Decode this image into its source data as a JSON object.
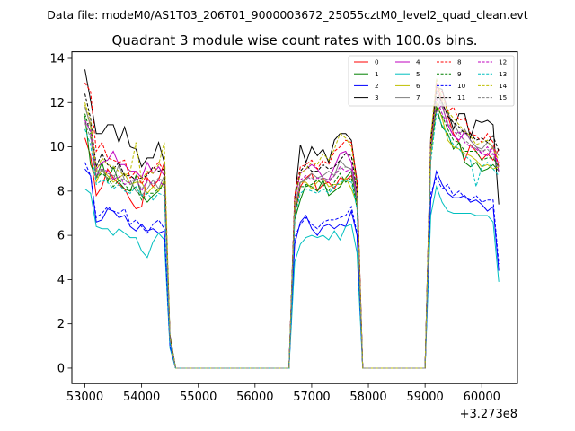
{
  "figure": {
    "suptitle": "Data file: modeM0/AS1T03_206T01_9000003672_25055cztM0_level2_quad_clean.evt"
  },
  "chart_data": {
    "type": "line",
    "title": "Quadrant 3 module wise count rates with 100.0s bins.",
    "xlabel": "",
    "ylabel": "",
    "x_offset_label": "+3.273e8",
    "xlim": [
      52770,
      60630
    ],
    "ylim": [
      -0.7,
      14.3
    ],
    "x_ticks": [
      53000,
      54000,
      55000,
      56000,
      57000,
      58000,
      59000,
      60000
    ],
    "x_tick_labels": [
      "53000",
      "54000",
      "55000",
      "56000",
      "57000",
      "58000",
      "59000",
      "60000"
    ],
    "y_ticks": [
      0,
      2,
      4,
      6,
      8,
      10,
      12,
      14
    ],
    "y_tick_labels": [
      "0",
      "2",
      "4",
      "6",
      "8",
      "10",
      "12",
      "14"
    ],
    "grid": false,
    "legend_position": "top-right",
    "legend_columns": 4,
    "segments": [
      {
        "x_start": 53000,
        "x_end": 54500,
        "step": 100
      },
      {
        "x_start": 54600,
        "x_end": 56600,
        "step": 100
      },
      {
        "x_start": 56700,
        "x_end": 57800,
        "step": 100
      },
      {
        "x_start": 57900,
        "x_end": 59000,
        "step": 100
      },
      {
        "x_start": 59100,
        "x_end": 60300,
        "step": 100
      }
    ],
    "series": [
      {
        "name": "0",
        "color": "#ff0000",
        "dash": "solid",
        "seg1": [
          10.4,
          9.6,
          7.8,
          8.2,
          9.0,
          8.6,
          8.3,
          8.1,
          7.6,
          7.2,
          7.3,
          8.6,
          8.2,
          8.5,
          9.3,
          1.3
        ],
        "seg3": [
          6.9,
          8.2,
          8.6,
          8.8,
          8.0,
          8.3,
          8.4,
          8.1,
          8.6,
          8.5,
          8.7,
          7.9
        ],
        "seg5": [
          9.6,
          12.9,
          12.0,
          11.4,
          10.6,
          10.2,
          9.4,
          10.1,
          9.8,
          9.4,
          9.7,
          9.4,
          9.9
        ]
      },
      {
        "name": "1",
        "color": "#008000",
        "dash": "solid",
        "seg1": [
          11.4,
          9.2,
          8.6,
          9.3,
          8.4,
          9.1,
          8.4,
          8.1,
          8.0,
          8.7,
          7.8,
          7.5,
          7.8,
          8.0,
          8.4,
          1.3
        ],
        "seg3": [
          6.7,
          7.6,
          8.3,
          8.2,
          8.0,
          8.5,
          7.8,
          8.0,
          8.2,
          8.6,
          8.9,
          7.4
        ],
        "seg5": [
          9.6,
          11.8,
          10.9,
          10.6,
          9.9,
          10.2,
          9.3,
          9.1,
          9.3,
          8.9,
          9.0,
          9.2,
          8.9
        ]
      },
      {
        "name": "2",
        "color": "#0000ff",
        "dash": "solid",
        "seg1": [
          9.0,
          8.7,
          6.6,
          6.7,
          7.2,
          7.1,
          6.8,
          6.9,
          6.4,
          6.2,
          6.5,
          6.2,
          6.3,
          6.1,
          6.2,
          1.0
        ],
        "seg3": [
          5.6,
          6.6,
          6.9,
          6.3,
          6.0,
          6.4,
          6.5,
          6.3,
          6.5,
          6.4,
          7.1,
          6.0
        ],
        "seg5": [
          7.6,
          8.9,
          8.3,
          7.9,
          7.7,
          7.7,
          7.8,
          7.5,
          7.6,
          7.4,
          7.1,
          7.3,
          4.4
        ]
      },
      {
        "name": "3",
        "color": "#000000",
        "dash": "solid",
        "seg1": [
          13.5,
          12.1,
          10.6,
          10.6,
          11.0,
          11.0,
          10.2,
          10.9,
          10.0,
          9.9,
          9.1,
          9.5,
          9.5,
          10.2,
          9.3,
          1.5
        ],
        "seg3": [
          7.6,
          10.1,
          9.3,
          10.0,
          9.6,
          9.9,
          9.3,
          10.3,
          10.6,
          10.6,
          10.3,
          8.4
        ],
        "seg5": [
          10.4,
          12.7,
          12.6,
          11.6,
          10.8,
          11.5,
          11.5,
          10.4,
          11.2,
          11.1,
          11.2,
          11.0,
          7.4
        ]
      },
      {
        "name": "4",
        "color": "#bf00bf",
        "dash": "solid",
        "seg1": [
          11.0,
          11.1,
          9.0,
          9.3,
          9.4,
          9.8,
          9.2,
          9.2,
          8.9,
          8.9,
          8.6,
          9.3,
          8.8,
          9.1,
          8.7,
          1.3
        ],
        "seg3": [
          7.6,
          8.8,
          9.0,
          9.2,
          9.0,
          8.6,
          8.5,
          9.1,
          9.7,
          9.8,
          9.3,
          7.8
        ],
        "seg5": [
          10.3,
          11.6,
          11.9,
          11.0,
          10.5,
          10.3,
          10.7,
          10.3,
          10.0,
          9.7,
          9.6,
          10.0,
          8.9
        ]
      },
      {
        "name": "5",
        "color": "#00bfbf",
        "dash": "solid",
        "seg1": [
          8.1,
          7.9,
          6.4,
          6.3,
          6.3,
          6.0,
          6.3,
          6.1,
          5.9,
          5.9,
          5.3,
          5.0,
          5.7,
          6.1,
          5.8,
          0.9
        ],
        "seg3": [
          4.8,
          5.6,
          5.9,
          6.0,
          5.9,
          6.0,
          5.8,
          6.2,
          5.8,
          6.4,
          6.5,
          5.2
        ],
        "seg5": [
          6.9,
          8.2,
          7.5,
          7.1,
          7.0,
          7.0,
          7.0,
          7.0,
          6.9,
          6.9,
          6.9,
          6.6,
          3.9
        ]
      },
      {
        "name": "6",
        "color": "#bfbf00",
        "dash": "solid",
        "seg1": [
          11.9,
          10.9,
          8.4,
          9.0,
          8.7,
          8.4,
          8.6,
          8.8,
          8.3,
          8.4,
          8.4,
          7.9,
          8.2,
          8.0,
          8.5,
          1.3
        ],
        "seg3": [
          7.1,
          8.4,
          8.4,
          8.1,
          8.4,
          8.6,
          8.2,
          8.3,
          8.3,
          8.6,
          8.1,
          7.4
        ],
        "seg5": [
          9.5,
          12.0,
          11.3,
          10.3,
          10.0,
          9.9,
          9.7,
          9.6,
          9.4,
          9.1,
          9.2,
          9.0,
          9.1
        ]
      },
      {
        "name": "7",
        "color": "#808080",
        "dash": "solid",
        "seg1": [
          11.8,
          11.0,
          8.9,
          9.0,
          8.5,
          8.5,
          9.2,
          8.5,
          8.5,
          8.0,
          7.8,
          8.1,
          8.5,
          8.1,
          8.7,
          1.3
        ],
        "seg3": [
          7.3,
          8.4,
          8.5,
          8.8,
          8.6,
          8.7,
          8.9,
          8.7,
          9.4,
          9.1,
          9.0,
          7.6
        ],
        "seg5": [
          9.9,
          12.6,
          11.9,
          11.5,
          11.1,
          10.6,
          10.8,
          10.3,
          10.0,
          9.9,
          10.2,
          10.0,
          9.6
        ]
      },
      {
        "name": "8",
        "color": "#ff0000",
        "dash": "dashed",
        "seg1": [
          12.9,
          12.5,
          9.8,
          10.2,
          9.5,
          9.4,
          9.3,
          9.4,
          8.6,
          8.9,
          8.3,
          8.8,
          9.0,
          9.3,
          8.9,
          1.4
        ],
        "seg3": [
          7.8,
          9.1,
          9.2,
          9.4,
          9.0,
          9.4,
          9.2,
          9.8,
          10.0,
          10.3,
          10.2,
          8.5
        ],
        "seg5": [
          10.1,
          12.7,
          12.5,
          11.6,
          11.8,
          11.2,
          11.3,
          10.6,
          10.5,
          10.2,
          10.6,
          10.2,
          9.1
        ]
      },
      {
        "name": "9",
        "color": "#008000",
        "dash": "dashed",
        "seg1": [
          11.5,
          10.6,
          8.6,
          8.8,
          8.6,
          8.2,
          8.5,
          8.3,
          8.0,
          8.2,
          7.6,
          7.9,
          7.9,
          8.1,
          8.2,
          1.3
        ],
        "seg3": [
          6.9,
          8.2,
          8.2,
          8.3,
          8.5,
          8.3,
          8.0,
          8.4,
          8.8,
          8.4,
          8.6,
          7.2
        ],
        "seg5": [
          9.8,
          11.8,
          11.4,
          10.8,
          10.3,
          10.2,
          9.8,
          9.8,
          9.8,
          9.4,
          9.5,
          9.5,
          9.1
        ]
      },
      {
        "name": "10",
        "color": "#0000ff",
        "dash": "dashed",
        "seg1": [
          9.3,
          8.7,
          6.8,
          7.0,
          7.3,
          7.1,
          7.0,
          7.2,
          6.5,
          6.7,
          6.4,
          6.1,
          6.5,
          6.7,
          6.3,
          1.0
        ],
        "seg3": [
          5.9,
          6.5,
          6.8,
          6.5,
          6.3,
          6.6,
          6.7,
          6.7,
          6.8,
          6.9,
          7.3,
          6.1
        ],
        "seg5": [
          7.9,
          8.6,
          8.1,
          8.3,
          7.8,
          8.0,
          7.7,
          7.6,
          7.8,
          7.5,
          7.6,
          7.6,
          4.7
        ]
      },
      {
        "name": "11",
        "color": "#000000",
        "dash": "dashed",
        "seg1": [
          12.4,
          11.3,
          9.1,
          9.7,
          9.2,
          9.0,
          9.3,
          8.7,
          8.7,
          8.5,
          8.6,
          8.7,
          9.1,
          8.9,
          9.0,
          1.4
        ],
        "seg3": [
          7.6,
          8.9,
          9.2,
          8.9,
          8.9,
          9.2,
          9.0,
          9.1,
          9.4,
          9.7,
          9.6,
          8.0
        ],
        "seg5": [
          10.2,
          12.5,
          12.0,
          11.4,
          11.1,
          10.9,
          10.6,
          10.6,
          10.3,
          10.4,
          10.2,
          10.5,
          9.8
        ]
      },
      {
        "name": "12",
        "color": "#bf00bf",
        "dash": "dashed",
        "seg1": [
          11.2,
          10.7,
          8.7,
          9.0,
          8.9,
          8.5,
          8.7,
          8.3,
          8.4,
          8.6,
          8.0,
          8.5,
          8.3,
          8.5,
          8.2,
          1.3
        ],
        "seg3": [
          7.2,
          8.5,
          8.7,
          8.5,
          8.6,
          8.5,
          8.4,
          8.7,
          9.1,
          8.9,
          9.0,
          7.6
        ],
        "seg5": [
          9.9,
          12.2,
          11.5,
          11.0,
          10.5,
          10.7,
          10.2,
          10.0,
          9.9,
          9.7,
          10.0,
          9.7,
          9.3
        ]
      },
      {
        "name": "13",
        "color": "#00bfbf",
        "dash": "dashed",
        "seg1": [
          10.8,
          10.1,
          8.3,
          8.5,
          8.4,
          8.1,
          8.3,
          8.0,
          7.9,
          8.2,
          7.8,
          7.9,
          7.6,
          7.9,
          7.8,
          1.2
        ],
        "seg3": [
          6.8,
          7.9,
          8.1,
          8.0,
          7.9,
          8.1,
          7.9,
          8.2,
          8.4,
          8.5,
          8.4,
          7.2
        ],
        "seg5": [
          9.3,
          11.5,
          11.0,
          10.5,
          10.1,
          9.9,
          9.6,
          9.4,
          8.2,
          9.1,
          9.3,
          9.0,
          8.7
        ]
      },
      {
        "name": "14",
        "color": "#bfbf00",
        "dash": "dashed",
        "seg1": [
          12.0,
          11.2,
          8.9,
          9.5,
          9.2,
          9.1,
          8.9,
          8.7,
          8.9,
          10.2,
          8.5,
          8.9,
          8.8,
          9.2,
          10.2,
          1.4
        ],
        "seg3": [
          7.5,
          8.8,
          9.0,
          9.3,
          9.2,
          9.7,
          9.4,
          9.9,
          10.6,
          10.4,
          10.0,
          8.1
        ],
        "seg5": [
          10.4,
          13.1,
          12.2,
          11.6,
          11.3,
          11.0,
          10.7,
          10.5,
          10.1,
          10.2,
          10.3,
          9.9,
          9.4
        ]
      },
      {
        "name": "15",
        "color": "#808080",
        "dash": "dashed",
        "seg1": [
          11.1,
          10.4,
          8.6,
          9.0,
          8.8,
          8.7,
          8.6,
          8.5,
          8.3,
          8.5,
          8.1,
          8.4,
          8.3,
          8.6,
          8.4,
          1.3
        ],
        "seg3": [
          7.1,
          8.4,
          8.6,
          8.6,
          8.5,
          8.6,
          8.5,
          8.7,
          9.0,
          9.1,
          9.0,
          7.7
        ],
        "seg5": [
          9.7,
          12.3,
          11.8,
          11.1,
          10.7,
          10.5,
          10.3,
          10.1,
          9.9,
          9.8,
          9.9,
          9.6,
          9.1
        ]
      }
    ]
  }
}
